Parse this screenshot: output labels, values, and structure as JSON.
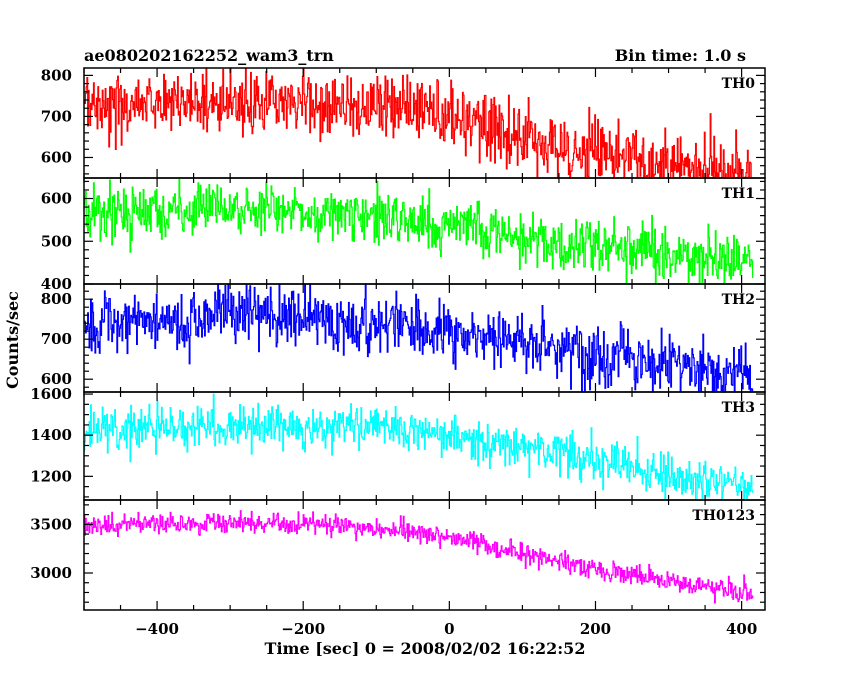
{
  "header": {
    "left_title": "ae080202162252_wam3_trn",
    "right_title": "Bin time: 1.0 s"
  },
  "axes": {
    "xlabel": "Time [sec] 0 = 2008/02/02 16:22:52",
    "ylabel": "Counts/sec"
  },
  "chart_data": {
    "type": "line",
    "title": "ae080202162252_wam3_trn",
    "subtitle": "Bin time: 1.0 s",
    "xlabel": "Time [sec] 0 = 2008/02/02 16:22:52",
    "ylabel": "Counts/sec",
    "x_range": [
      -500,
      415
    ],
    "xlim": [
      -500,
      432
    ],
    "x_ticks": [
      -400,
      -200,
      0,
      200,
      400
    ],
    "bin_time_s": 1.0,
    "grid": false,
    "panels": [
      {
        "label": "TH0",
        "color": "#ff0000",
        "ylim": [
          550,
          818
        ],
        "y_ticks": [
          600,
          700,
          800
        ],
        "trend_x": [
          -500,
          -400,
          -300,
          -200,
          -100,
          0,
          100,
          200,
          300,
          415
        ],
        "trend_y": [
          722,
          732,
          740,
          735,
          728,
          700,
          650,
          605,
          585,
          558
        ],
        "noise_sd": 40
      },
      {
        "label": "TH1",
        "color": "#00ff00",
        "ylim": [
          400,
          648
        ],
        "y_ticks": [
          400,
          500,
          600
        ],
        "trend_x": [
          -500,
          -400,
          -300,
          -200,
          -100,
          0,
          100,
          200,
          300,
          415
        ],
        "trend_y": [
          565,
          570,
          575,
          570,
          555,
          540,
          510,
          490,
          470,
          450
        ],
        "noise_sd": 30
      },
      {
        "label": "TH2",
        "color": "#0000ff",
        "ylim": [
          568,
          838
        ],
        "y_ticks": [
          600,
          700,
          800
        ],
        "trend_x": [
          -500,
          -400,
          -300,
          -200,
          -100,
          0,
          100,
          200,
          300,
          415
        ],
        "trend_y": [
          745,
          752,
          758,
          752,
          742,
          720,
          690,
          665,
          640,
          615
        ],
        "noise_sd": 38
      },
      {
        "label": "TH3",
        "color": "#00ffff",
        "ylim": [
          1085,
          1610
        ],
        "y_ticks": [
          1200,
          1400,
          1600
        ],
        "trend_x": [
          -500,
          -400,
          -300,
          -200,
          -100,
          0,
          100,
          200,
          300,
          415
        ],
        "trend_y": [
          1425,
          1440,
          1450,
          1445,
          1440,
          1400,
          1340,
          1270,
          1210,
          1150
        ],
        "noise_sd": 52
      },
      {
        "label": "TH0123",
        "color": "#ff00ff",
        "ylim": [
          2620,
          3750
        ],
        "y_ticks": [
          3000,
          3500
        ],
        "trend_x": [
          -500,
          -400,
          -300,
          -200,
          -100,
          0,
          100,
          200,
          300,
          415
        ],
        "trend_y": [
          3480,
          3505,
          3520,
          3505,
          3470,
          3370,
          3200,
          3040,
          2910,
          2790
        ],
        "noise_sd": 55
      }
    ]
  }
}
